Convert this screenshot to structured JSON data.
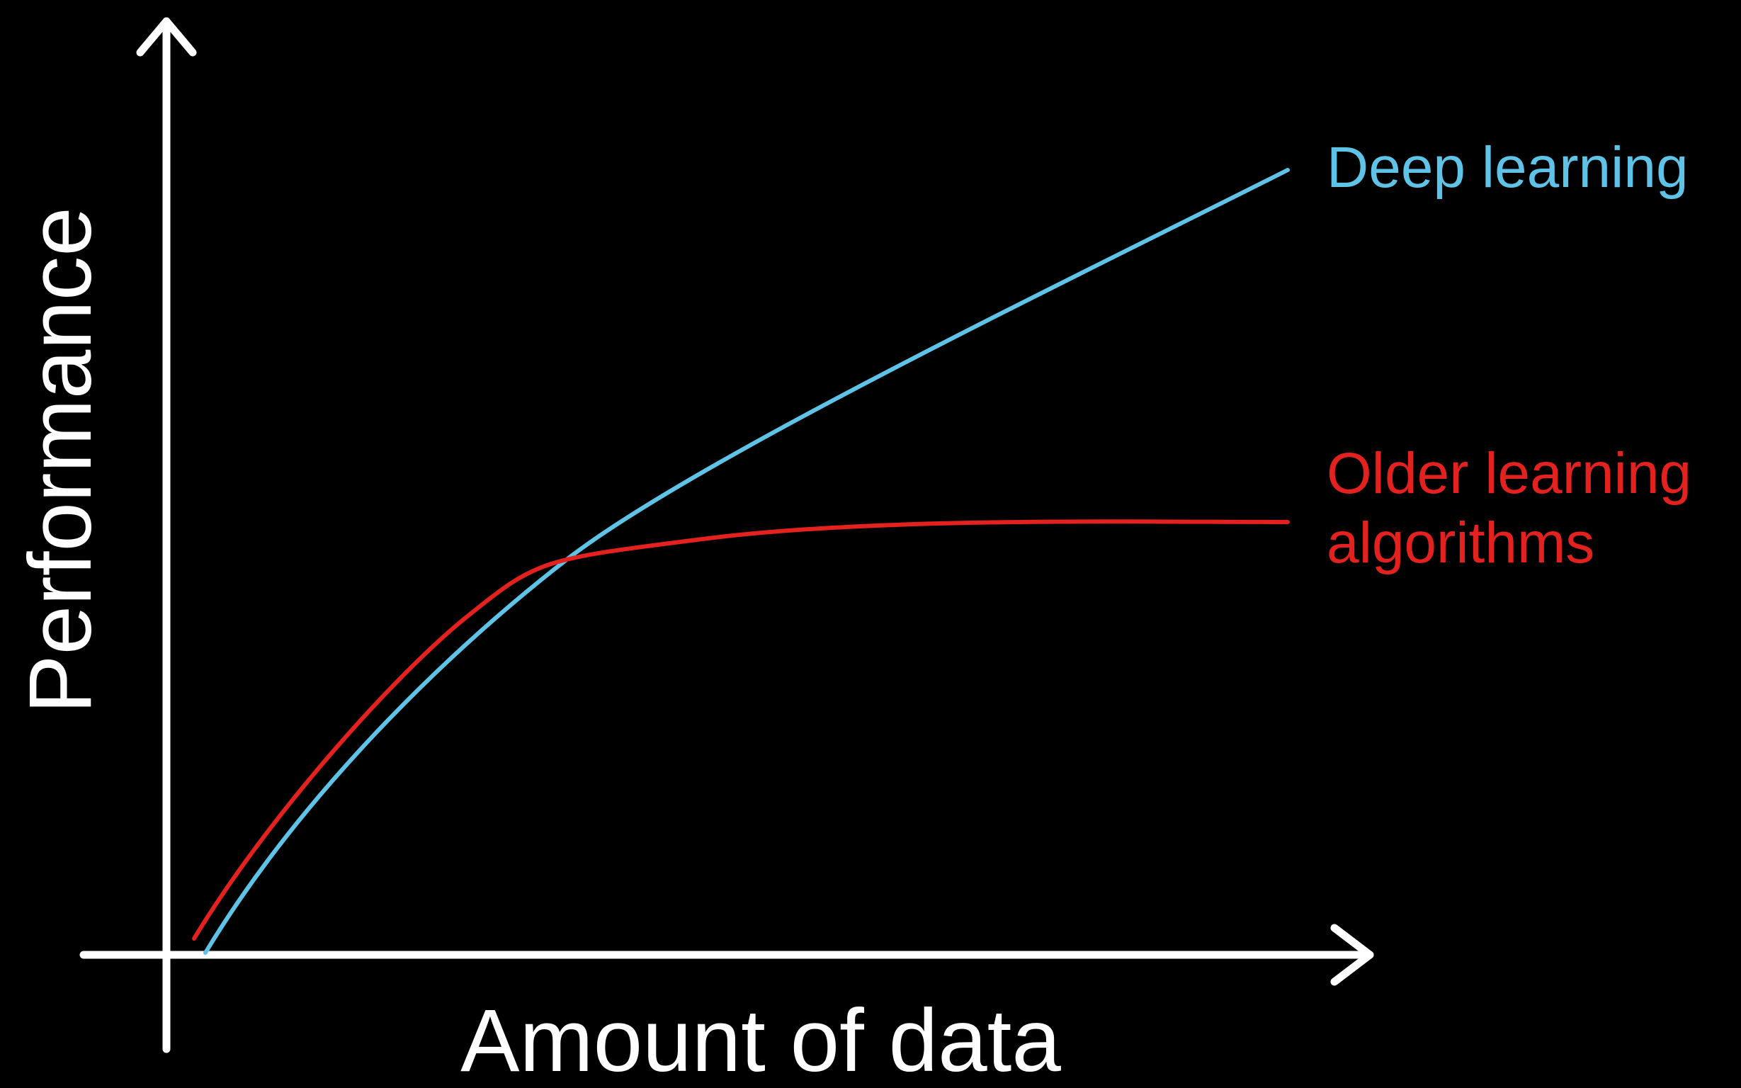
{
  "chart_data": {
    "type": "line",
    "x_label": "Amount of data",
    "y_label": "Performance",
    "series": [
      {
        "name": "Deep learning",
        "color": "#5ec3e6"
      },
      {
        "name": "Older learning algorithms",
        "color": "#e3211e"
      }
    ]
  }
}
